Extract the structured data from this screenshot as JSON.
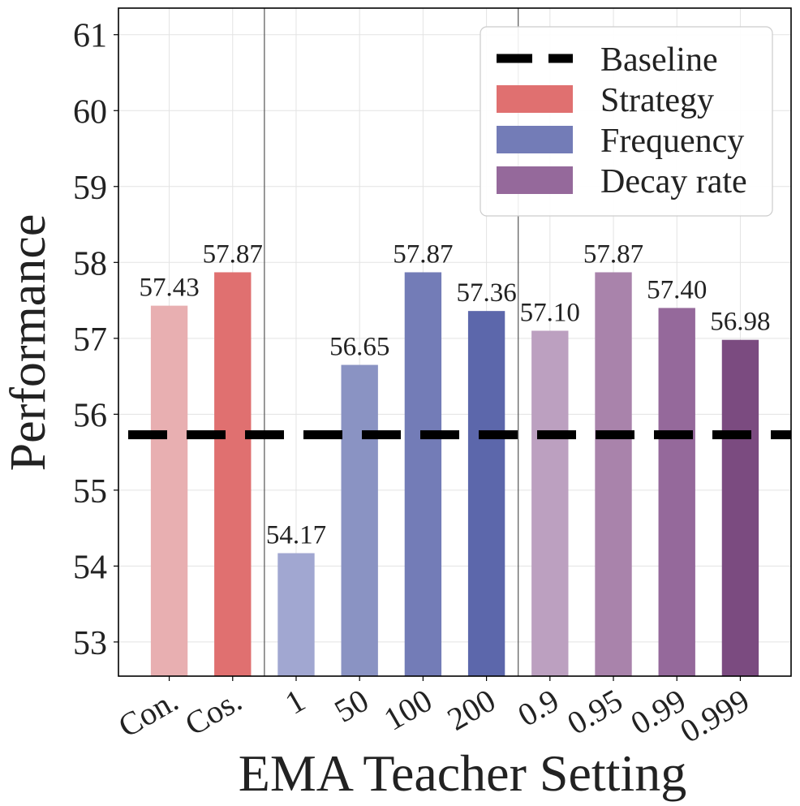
{
  "chart_data": {
    "type": "bar",
    "title": "",
    "xlabel": "EMA Teacher Setting",
    "ylabel": "Performance",
    "ylim": [
      52.55,
      61.35
    ],
    "yticks": [
      53,
      54,
      55,
      56,
      57,
      58,
      59,
      60,
      61
    ],
    "grid": true,
    "legend_position": "top-right",
    "baseline": {
      "name": "Baseline",
      "value": 55.73
    },
    "categories": [
      "Con.",
      "Cos.",
      "1",
      "50",
      "100",
      "200",
      "0.9",
      "0.95",
      "0.99",
      "0.999"
    ],
    "values": [
      57.43,
      57.87,
      54.17,
      56.65,
      57.87,
      57.36,
      57.1,
      57.87,
      57.4,
      56.98
    ],
    "value_labels": [
      "57.43",
      "57.87",
      "54.17",
      "56.65",
      "57.87",
      "57.36",
      "57.10",
      "57.87",
      "57.40",
      "56.98"
    ],
    "groups": [
      {
        "name": "Strategy",
        "color": "#e07070",
        "indices": [
          0,
          1
        ]
      },
      {
        "name": "Frequency",
        "color": "#737cb7",
        "indices": [
          2,
          3,
          4,
          5
        ]
      },
      {
        "name": "Decay rate",
        "color": "#95699b",
        "indices": [
          6,
          7,
          8,
          9
        ]
      }
    ],
    "bar_colors": [
      "#e8afb1",
      "#e07070",
      "#a1a7d1",
      "#8a93c3",
      "#737cb7",
      "#5c67ab",
      "#bca0c0",
      "#a983ab",
      "#95699b",
      "#7b4b80"
    ],
    "group_separators_after": [
      1,
      5
    ],
    "legend": [
      {
        "label": "Baseline",
        "kind": "dashed-line",
        "color": "#000000"
      },
      {
        "label": "Strategy",
        "kind": "patch",
        "color": "#e07070"
      },
      {
        "label": "Frequency",
        "kind": "patch",
        "color": "#737cb7"
      },
      {
        "label": "Decay rate",
        "kind": "patch",
        "color": "#95699b"
      }
    ]
  }
}
